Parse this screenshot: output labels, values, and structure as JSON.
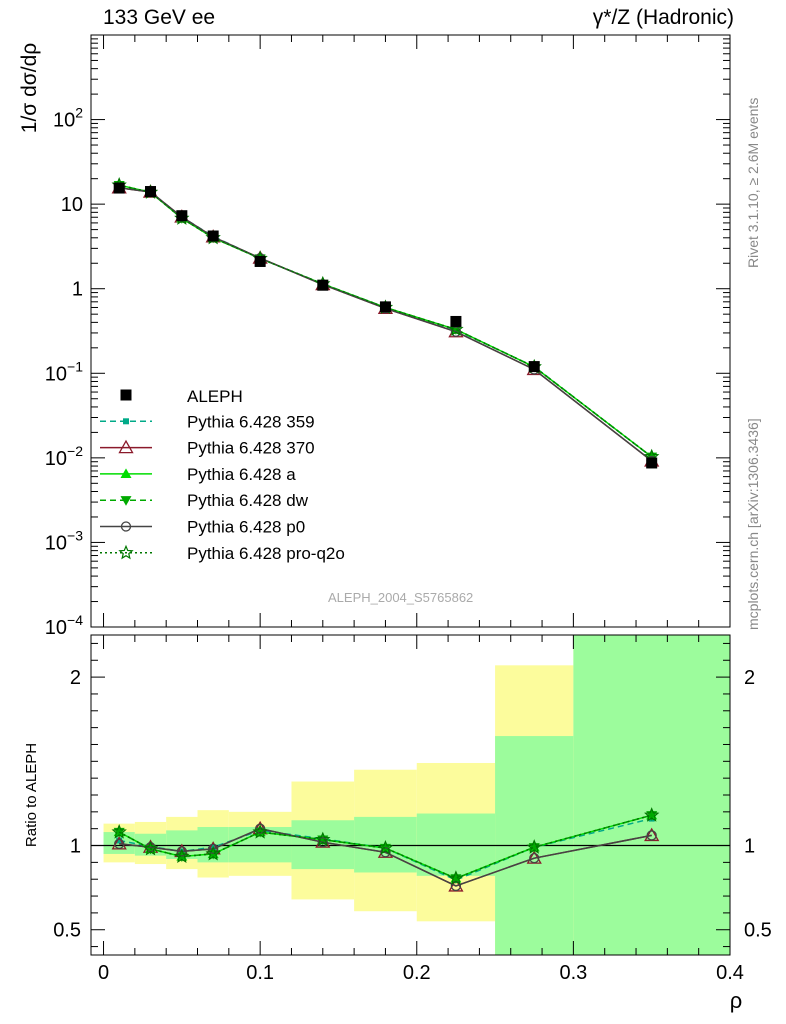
{
  "header": {
    "left": "133 GeV ee",
    "right": "γ*/Z (Hadronic)"
  },
  "side_labels": {
    "top": "Rivet 3.1.10, ≥ 2.6M events",
    "bottom": "mcplots.cern.ch [arXiv:1306.3436]"
  },
  "analysis_id": "ALEPH_2004_S5765862",
  "colors": {
    "data": "#000000",
    "p359": "#00aa88",
    "p370": "#8b1a2b",
    "pa": "#00dd00",
    "pdw": "#00aa00",
    "pp0": "#444444",
    "pq2o": "#007700",
    "band_inner": "#9cfc9c",
    "band_outer": "#fcfc9c"
  },
  "chart_data": [
    {
      "type": "scatter",
      "panel": "main",
      "ylabel": "1/σ dσ/dρ",
      "yscale": "log",
      "ylim": [
        0.0001,
        1000
      ],
      "xlim": [
        -0.008,
        0.4
      ],
      "ytick_labels": [
        "10^-4",
        "10^-3",
        "10^-2",
        "10^-1",
        "1",
        "10",
        "10^2"
      ],
      "x": [
        0.01,
        0.03,
        0.05,
        0.07,
        0.1,
        0.14,
        0.18,
        0.225,
        0.275,
        0.35
      ],
      "data": {
        "name": "ALEPH",
        "y": [
          15.5,
          14.1,
          7.3,
          4.2,
          2.1,
          1.1,
          0.61,
          0.41,
          0.12,
          0.0087
        ]
      },
      "series": [
        {
          "name": "Pythia 6.428 359",
          "color_key": "p359",
          "style": "dashed",
          "marker": "square",
          "y": [
            15.9,
            14.0,
            7.05,
            4.15,
            2.28,
            1.14,
            0.6,
            0.325,
            0.12,
            0.0102
          ]
        },
        {
          "name": "Pythia 6.428 370",
          "color_key": "p370",
          "style": "solid",
          "marker": "triangle-open",
          "y": [
            15.6,
            13.9,
            7.05,
            4.1,
            2.3,
            1.12,
            0.585,
            0.31,
            0.111,
            0.0092
          ]
        },
        {
          "name": "Pythia 6.428 a",
          "color_key": "pa",
          "style": "solid",
          "marker": "triangle",
          "y": [
            16.8,
            13.8,
            6.8,
            4.0,
            2.28,
            1.14,
            0.6,
            0.33,
            0.119,
            0.0103
          ]
        },
        {
          "name": "Pythia 6.428 dw",
          "color_key": "pdw",
          "style": "dashed",
          "marker": "triangle-down",
          "y": [
            16.8,
            13.8,
            6.8,
            4.0,
            2.28,
            1.14,
            0.6,
            0.33,
            0.119,
            0.0103
          ]
        },
        {
          "name": "Pythia 6.428 p0",
          "color_key": "pp0",
          "style": "solid",
          "marker": "circle-open",
          "y": [
            15.6,
            13.9,
            7.05,
            4.1,
            2.3,
            1.12,
            0.585,
            0.31,
            0.111,
            0.0092
          ]
        },
        {
          "name": "Pythia 6.428 pro-q2o",
          "color_key": "pq2o",
          "style": "dotted",
          "marker": "star",
          "y": [
            16.8,
            13.8,
            6.8,
            4.0,
            2.28,
            1.14,
            0.6,
            0.33,
            0.119,
            0.0103
          ]
        }
      ]
    },
    {
      "type": "line",
      "panel": "ratio",
      "ylabel": "Ratio to ALEPH",
      "xlabel": "ρ",
      "ylim": [
        0.35,
        2.25
      ],
      "xlim": [
        -0.008,
        0.4
      ],
      "xticks": [
        0,
        0.1,
        0.2,
        0.3,
        0.4
      ],
      "yticks": [
        0.5,
        1,
        2
      ],
      "bins": [
        {
          "lo": 0.0,
          "hi": 0.02,
          "inner": [
            0.95,
            1.08
          ],
          "outer": [
            0.9,
            1.13
          ]
        },
        {
          "lo": 0.02,
          "hi": 0.04,
          "inner": [
            0.94,
            1.07
          ],
          "outer": [
            0.89,
            1.14
          ]
        },
        {
          "lo": 0.04,
          "hi": 0.06,
          "inner": [
            0.92,
            1.09
          ],
          "outer": [
            0.86,
            1.17
          ]
        },
        {
          "lo": 0.06,
          "hi": 0.08,
          "inner": [
            0.9,
            1.11
          ],
          "outer": [
            0.81,
            1.21
          ]
        },
        {
          "lo": 0.08,
          "hi": 0.12,
          "inner": [
            0.9,
            1.11
          ],
          "outer": [
            0.82,
            1.2
          ]
        },
        {
          "lo": 0.12,
          "hi": 0.16,
          "inner": [
            0.86,
            1.15
          ],
          "outer": [
            0.68,
            1.38
          ]
        },
        {
          "lo": 0.16,
          "hi": 0.2,
          "inner": [
            0.84,
            1.17
          ],
          "outer": [
            0.61,
            1.45
          ]
        },
        {
          "lo": 0.2,
          "hi": 0.25,
          "inner": [
            0.82,
            1.19
          ],
          "outer": [
            0.55,
            1.49
          ]
        },
        {
          "lo": 0.25,
          "hi": 0.3,
          "inner": [
            0.35,
            1.65
          ],
          "outer": [
            0.35,
            2.07
          ]
        },
        {
          "lo": 0.3,
          "hi": 0.4,
          "inner": [
            0.35,
            2.25
          ],
          "outer": [
            0.35,
            2.25
          ]
        }
      ],
      "series": [
        {
          "name": "Pythia 6.428 359",
          "color_key": "p359",
          "style": "dashed",
          "marker": "square",
          "y": [
            1.03,
            0.995,
            0.965,
            0.99,
            1.09,
            1.04,
            0.985,
            0.795,
            0.99,
            1.16
          ]
        },
        {
          "name": "Pythia 6.428 370",
          "color_key": "p370",
          "style": "solid",
          "marker": "triangle-open",
          "y": [
            1.01,
            0.99,
            0.965,
            0.98,
            1.1,
            1.02,
            0.96,
            0.76,
            0.925,
            1.06
          ]
        },
        {
          "name": "Pythia 6.428 a",
          "color_key": "pa",
          "style": "solid",
          "marker": "triangle",
          "y": [
            1.08,
            0.98,
            0.935,
            0.95,
            1.08,
            1.035,
            0.985,
            0.805,
            0.99,
            1.18
          ]
        },
        {
          "name": "Pythia 6.428 dw",
          "color_key": "pdw",
          "style": "dashed",
          "marker": "triangle-down",
          "y": [
            1.08,
            0.98,
            0.935,
            0.95,
            1.08,
            1.035,
            0.985,
            0.805,
            0.99,
            1.18
          ]
        },
        {
          "name": "Pythia 6.428 p0",
          "color_key": "pp0",
          "style": "solid",
          "marker": "circle-open",
          "y": [
            1.01,
            0.99,
            0.965,
            0.98,
            1.1,
            1.02,
            0.96,
            0.76,
            0.925,
            1.06
          ]
        },
        {
          "name": "Pythia 6.428 pro-q2o",
          "color_key": "pq2o",
          "style": "dotted",
          "marker": "star",
          "y": [
            1.08,
            0.98,
            0.935,
            0.95,
            1.08,
            1.035,
            0.985,
            0.805,
            0.99,
            1.18
          ]
        }
      ]
    }
  ]
}
